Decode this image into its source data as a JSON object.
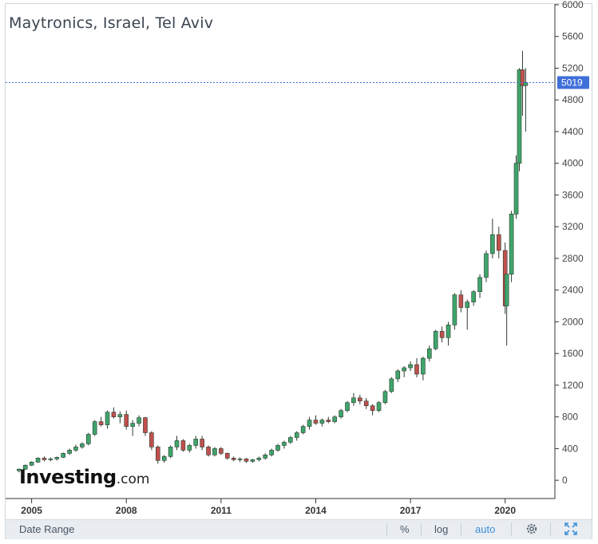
{
  "title": "Maytronics, Israel, Tel Aviv",
  "logo": {
    "main": "Investing",
    "suffix": ".com"
  },
  "price_tag": {
    "value": "5019",
    "color": "#3f6fd8"
  },
  "colors": {
    "up": "#3fa56b",
    "down": "#c0504d",
    "wick": "#2c3b2f",
    "crosshair": "#3f6fd8",
    "grid": "#ffffff",
    "axis": "#333333"
  },
  "bottom_bar": {
    "date_range": "Date Range",
    "percent": "%",
    "log": "log",
    "auto": "auto",
    "settings_icon": "gear-icon",
    "fullscreen_icon": "fullscreen-icon"
  },
  "chart_data": {
    "type": "candlestick",
    "title": "Maytronics, Israel, Tel Aviv",
    "xlabel": "",
    "ylabel": "",
    "ylim": [
      -200,
      6000
    ],
    "xlim": [
      2004.2,
      2021.5
    ],
    "y_ticks": [
      0,
      400,
      800,
      1200,
      1600,
      2000,
      2400,
      2800,
      3200,
      3600,
      4000,
      4400,
      4800,
      5200,
      5600,
      6000
    ],
    "x_ticks": [
      2005,
      2008,
      2011,
      2014,
      2017,
      2020
    ],
    "last_price": 5019,
    "grid": false,
    "series": [
      {
        "ohlc_columns": [
          "x",
          "open",
          "high",
          "low",
          "close"
        ],
        "values": [
          [
            2004.6,
            120,
            150,
            100,
            140
          ],
          [
            2004.8,
            140,
            200,
            130,
            190
          ],
          [
            2005.0,
            190,
            240,
            180,
            230
          ],
          [
            2005.2,
            230,
            290,
            220,
            280
          ],
          [
            2005.4,
            280,
            300,
            240,
            260
          ],
          [
            2005.6,
            260,
            290,
            240,
            270
          ],
          [
            2005.8,
            270,
            300,
            250,
            290
          ],
          [
            2006.0,
            290,
            350,
            280,
            340
          ],
          [
            2006.2,
            340,
            400,
            320,
            380
          ],
          [
            2006.4,
            380,
            450,
            360,
            420
          ],
          [
            2006.6,
            420,
            480,
            400,
            460
          ],
          [
            2006.8,
            460,
            600,
            440,
            580
          ],
          [
            2007.0,
            580,
            760,
            560,
            740
          ],
          [
            2007.2,
            740,
            800,
            680,
            700
          ],
          [
            2007.4,
            700,
            880,
            650,
            860
          ],
          [
            2007.6,
            860,
            920,
            780,
            800
          ],
          [
            2007.8,
            800,
            870,
            720,
            830
          ],
          [
            2008.0,
            830,
            880,
            640,
            680
          ],
          [
            2008.2,
            680,
            760,
            560,
            720
          ],
          [
            2008.4,
            720,
            820,
            680,
            790
          ],
          [
            2008.6,
            790,
            800,
            560,
            600
          ],
          [
            2008.8,
            600,
            620,
            380,
            420
          ],
          [
            2009.0,
            420,
            440,
            210,
            250
          ],
          [
            2009.2,
            250,
            320,
            220,
            300
          ],
          [
            2009.4,
            300,
            440,
            280,
            420
          ],
          [
            2009.6,
            420,
            560,
            380,
            500
          ],
          [
            2009.8,
            500,
            520,
            360,
            380
          ],
          [
            2010.0,
            380,
            460,
            350,
            440
          ],
          [
            2010.2,
            440,
            560,
            400,
            520
          ],
          [
            2010.4,
            520,
            560,
            380,
            420
          ],
          [
            2010.6,
            420,
            440,
            300,
            320
          ],
          [
            2010.8,
            320,
            420,
            300,
            400
          ],
          [
            2011.0,
            400,
            420,
            320,
            340
          ],
          [
            2011.2,
            340,
            350,
            260,
            280
          ],
          [
            2011.4,
            280,
            300,
            240,
            260
          ],
          [
            2011.6,
            260,
            290,
            230,
            270
          ],
          [
            2011.8,
            270,
            280,
            220,
            240
          ],
          [
            2012.0,
            240,
            270,
            220,
            260
          ],
          [
            2012.2,
            260,
            300,
            240,
            280
          ],
          [
            2012.4,
            280,
            340,
            260,
            320
          ],
          [
            2012.6,
            320,
            400,
            300,
            380
          ],
          [
            2012.8,
            380,
            460,
            360,
            440
          ],
          [
            2013.0,
            440,
            500,
            400,
            480
          ],
          [
            2013.2,
            480,
            560,
            460,
            540
          ],
          [
            2013.4,
            540,
            620,
            500,
            600
          ],
          [
            2013.6,
            600,
            700,
            580,
            680
          ],
          [
            2013.8,
            680,
            800,
            640,
            760
          ],
          [
            2014.0,
            760,
            820,
            700,
            720
          ],
          [
            2014.2,
            720,
            780,
            680,
            760
          ],
          [
            2014.4,
            760,
            800,
            720,
            740
          ],
          [
            2014.6,
            740,
            820,
            720,
            800
          ],
          [
            2014.8,
            800,
            900,
            780,
            880
          ],
          [
            2015.0,
            880,
            1000,
            860,
            980
          ],
          [
            2015.2,
            980,
            1100,
            940,
            1040
          ],
          [
            2015.4,
            1040,
            1080,
            960,
            1000
          ],
          [
            2015.6,
            1000,
            1040,
            900,
            940
          ],
          [
            2015.8,
            940,
            960,
            820,
            880
          ],
          [
            2016.0,
            880,
            1000,
            860,
            980
          ],
          [
            2016.2,
            980,
            1140,
            960,
            1120
          ],
          [
            2016.4,
            1120,
            1300,
            1100,
            1280
          ],
          [
            2016.6,
            1280,
            1400,
            1240,
            1380
          ],
          [
            2016.8,
            1380,
            1440,
            1300,
            1420
          ],
          [
            2017.0,
            1420,
            1500,
            1380,
            1460
          ],
          [
            2017.2,
            1460,
            1540,
            1300,
            1340
          ],
          [
            2017.4,
            1340,
            1560,
            1260,
            1540
          ],
          [
            2017.6,
            1540,
            1700,
            1500,
            1660
          ],
          [
            2017.8,
            1660,
            1900,
            1640,
            1880
          ],
          [
            2018.0,
            1880,
            1940,
            1740,
            1800
          ],
          [
            2018.2,
            1800,
            2000,
            1700,
            1960
          ],
          [
            2018.4,
            1960,
            2360,
            1900,
            2340
          ],
          [
            2018.6,
            2340,
            2400,
            2120,
            2180
          ],
          [
            2018.8,
            2180,
            2280,
            1900,
            2250
          ],
          [
            2019.0,
            2250,
            2400,
            2200,
            2380
          ],
          [
            2019.2,
            2380,
            2600,
            2300,
            2560
          ],
          [
            2019.4,
            2560,
            2900,
            2500,
            2860
          ],
          [
            2019.6,
            2860,
            3300,
            2800,
            3100
          ],
          [
            2019.8,
            3100,
            3200,
            2800,
            2900
          ],
          [
            2020.0,
            2900,
            3000,
            2100,
            2200
          ],
          [
            2020.05,
            2200,
            2600,
            1700,
            2600
          ],
          [
            2020.2,
            2600,
            3400,
            2500,
            3360
          ],
          [
            2020.35,
            3360,
            4100,
            3300,
            4000
          ],
          [
            2020.45,
            4000,
            5200,
            3900,
            5180
          ],
          [
            2020.55,
            5180,
            5420,
            4600,
            4980
          ],
          [
            2020.65,
            4980,
            5200,
            4400,
            5019
          ]
        ]
      }
    ]
  }
}
